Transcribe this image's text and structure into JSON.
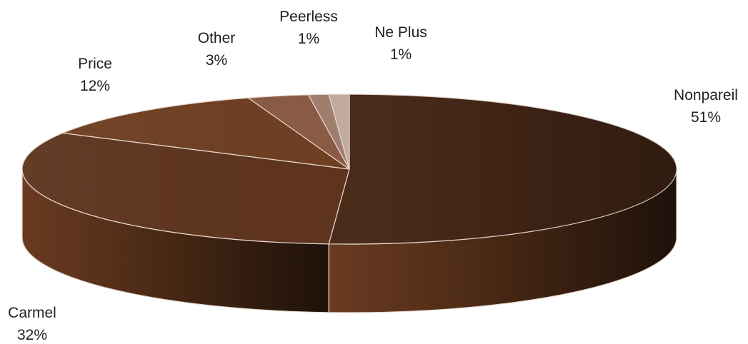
{
  "chart_data": {
    "type": "pie",
    "title": "",
    "categories": [
      "Nonpareil",
      "Carmel",
      "Price",
      "Other",
      "Peerless",
      "Ne Plus"
    ],
    "values": [
      51,
      32,
      12,
      3,
      1,
      1
    ],
    "value_labels": [
      "51%",
      "32%",
      "12%",
      "3%",
      "1%",
      "1%"
    ],
    "style": "3d-tilted",
    "legend": "none",
    "colors": {
      "Nonpareil": "#4a2a19",
      "Carmel": "#5e341e",
      "Price": "#6e3f22",
      "Other": "#8a5a44",
      "Peerless": "#a17e6e",
      "Ne Plus": "#c2aba0"
    }
  }
}
